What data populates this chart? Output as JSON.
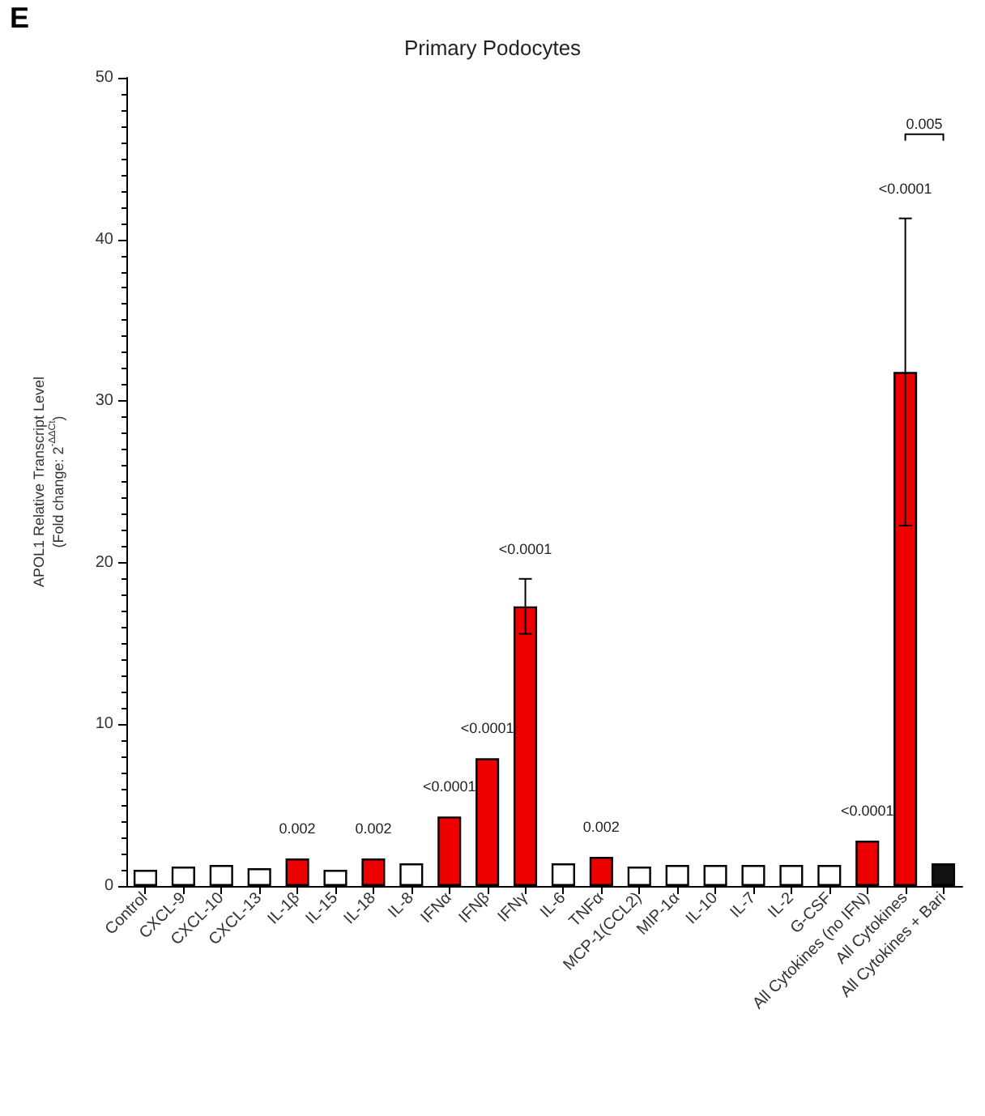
{
  "chart_data": {
    "type": "bar",
    "title": "Primary Podocytes",
    "ylabel": "APOL1 Relative Transcript Level\n(Fold change: 2$^{-ΔΔCt}$)",
    "categories": [
      "Control",
      "CXCL-9",
      "CXCL-10",
      "CXCL-13",
      "IL-1β",
      "IL-15",
      "IL-18",
      "IL-8",
      "IFNα",
      "IFNβ",
      "IFNγ",
      "IL-6",
      "TNFα",
      "MCP-1(CCL2)",
      "MIP-1α",
      "IL-10",
      "IL-7",
      "IL-2",
      "G-CSF",
      "All Cytokines (no IFN)",
      "All Cytokines",
      "All Cytokines + Bari"
    ],
    "values": [
      1.0,
      1.2,
      1.3,
      1.1,
      1.7,
      1.0,
      1.7,
      1.4,
      4.3,
      7.9,
      17.3,
      1.4,
      1.8,
      1.2,
      1.3,
      1.3,
      1.3,
      1.3,
      1.3,
      2.8,
      31.8,
      1.4
    ],
    "colors": [
      "#ffffff",
      "#ffffff",
      "#ffffff",
      "#ffffff",
      "#ee0000",
      "#ffffff",
      "#ee0000",
      "#ffffff",
      "#ee0000",
      "#ee0000",
      "#ee0000",
      "#ffffff",
      "#ee0000",
      "#ffffff",
      "#ffffff",
      "#ffffff",
      "#ffffff",
      "#ffffff",
      "#ffffff",
      "#ee0000",
      "#ee0000",
      "#111111"
    ],
    "errors": [
      null,
      null,
      null,
      null,
      null,
      null,
      null,
      null,
      null,
      null,
      [
        15.6,
        19.0
      ],
      null,
      null,
      null,
      null,
      null,
      null,
      null,
      null,
      null,
      [
        22.3,
        41.3
      ],
      null
    ],
    "ylim": [
      0,
      50
    ],
    "yticks": [
      0,
      10,
      20,
      30,
      40,
      50
    ],
    "grid": false,
    "annotations": [
      "E",
      {
        "text": "0.002",
        "x": "IL-1β",
        "y": 1.7
      },
      {
        "text": "0.002",
        "x": "IL-18",
        "y": 1.7
      },
      {
        "text": "<0.0001",
        "x": "IFNα",
        "y": 4.3
      },
      {
        "text": "<0.0001",
        "x": "IFNβ",
        "y": 7.9
      },
      {
        "text": "<0.0001",
        "x": "IFNγ",
        "y": 19.0
      },
      {
        "text": "0.002",
        "x": "TNFα",
        "y": 1.8
      },
      {
        "text": "<0.0001",
        "x": "All Cytokines (no IFN)",
        "y": 2.8
      },
      {
        "text": "<0.0001",
        "x": "All Cytokines",
        "y": 41.3
      },
      "0.005"
    ]
  }
}
